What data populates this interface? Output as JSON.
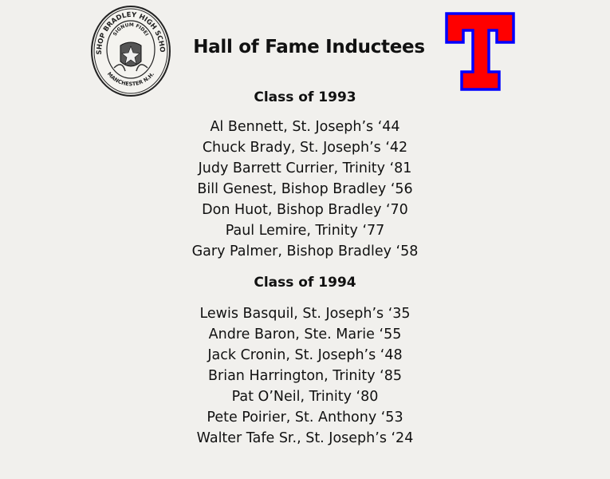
{
  "title": "Hall of Fame Inductees",
  "logos": {
    "left_seal": {
      "top_text": "BISHOP BRADLEY HIGH SCHOOL",
      "motto": "SIGNUM FIDEI",
      "bottom_text": "MANCHESTER N.H."
    },
    "right_logo": {
      "letter": "T",
      "fill": "#ff0000",
      "outline": "#0000ff"
    }
  },
  "classes": [
    {
      "heading": "Class of 1993",
      "inductees": [
        "Al Bennett, St. Joseph’s ‘44",
        "Chuck Brady, St. Joseph’s ‘42",
        "Judy Barrett Currier, Trinity ‘81",
        "Bill Genest, Bishop Bradley ‘56",
        "Don Huot, Bishop Bradley ‘70",
        "Paul Lemire, Trinity ‘77",
        "Gary Palmer, Bishop Bradley ‘58"
      ]
    },
    {
      "heading": "Class of 1994",
      "inductees": [
        "Lewis Basquil, St. Joseph’s ‘35",
        "Andre Baron, Ste. Marie ‘55",
        "Jack Cronin, St. Joseph’s ‘48",
        "Brian Harrington, Trinity ‘85",
        "Pat O’Neil, Trinity ‘80",
        "Pete Poirier, St. Anthony ‘53",
        "Walter Tafe Sr., St. Joseph’s ‘24"
      ]
    }
  ]
}
